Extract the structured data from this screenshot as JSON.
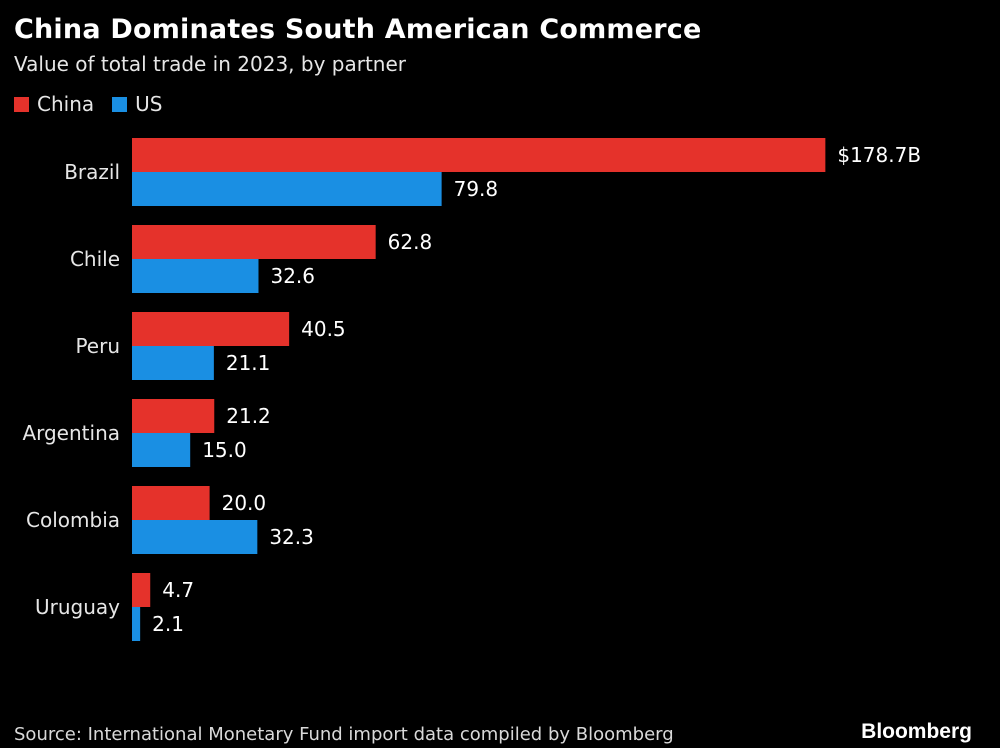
{
  "header": {
    "title": "China Dominates South American Commerce",
    "subtitle": "Value of total trade in 2023, by partner"
  },
  "legend": {
    "china_label": "China",
    "us_label": "US"
  },
  "colors": {
    "china": "#e5322b",
    "us": "#1a8fe3",
    "background": "#000000"
  },
  "chart_data": {
    "type": "bar",
    "orientation": "horizontal",
    "categories": [
      "Brazil",
      "Chile",
      "Peru",
      "Argentina",
      "Colombia",
      "Uruguay"
    ],
    "series": [
      {
        "name": "China",
        "values": [
          178.7,
          62.8,
          40.5,
          21.2,
          20.0,
          4.7
        ],
        "labels": [
          "$178.7B",
          "62.8",
          "40.5",
          "21.2",
          "20.0",
          "4.7"
        ]
      },
      {
        "name": "US",
        "values": [
          79.8,
          32.6,
          21.1,
          15.0,
          32.3,
          2.1
        ],
        "labels": [
          "79.8",
          "32.6",
          "21.1",
          "15.0",
          "32.3",
          "2.1"
        ]
      }
    ],
    "title": "China Dominates South American Commerce",
    "subtitle": "Value of total trade in 2023, by partner",
    "xlabel": "",
    "ylabel": "",
    "grid": false,
    "legend_position": "top-left"
  },
  "footer": {
    "source": "Source: International Monetary Fund import data compiled by Bloomberg",
    "brand": "Bloomberg"
  }
}
